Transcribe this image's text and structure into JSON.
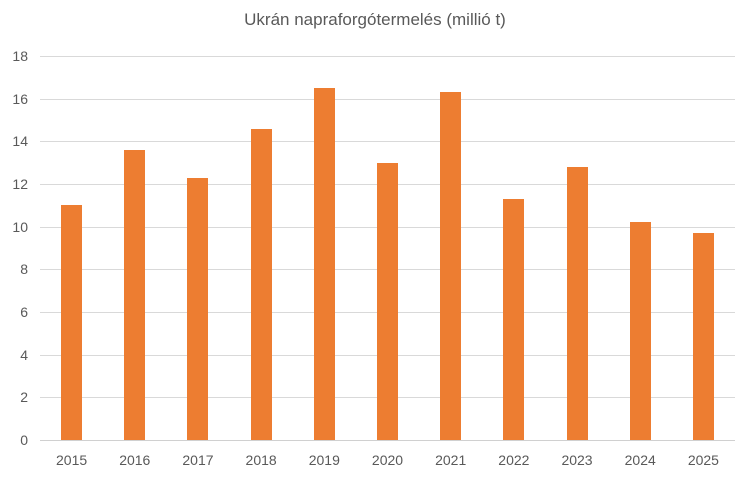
{
  "title": {
    "text": "Ukrán napraforgótermelés (millió t)"
  },
  "colors": {
    "bar": "#ED7D31",
    "gridline": "#D9D9D9",
    "axis_line": "#D0D0D0",
    "tick_label": "#595959",
    "title_text": "#595959",
    "background": "#FFFFFF"
  },
  "chart_data": {
    "type": "bar",
    "title": "Ukrán napraforgótermelés (millió t)",
    "categories": [
      "2015",
      "2016",
      "2017",
      "2018",
      "2019",
      "2020",
      "2021",
      "2022",
      "2023",
      "2024",
      "2025"
    ],
    "values": [
      11.0,
      13.6,
      12.3,
      14.6,
      16.5,
      13.0,
      16.3,
      11.3,
      12.8,
      10.2,
      9.7
    ],
    "xlabel": "",
    "ylabel": "",
    "ylim": [
      0,
      18
    ],
    "yticks": [
      0,
      2,
      4,
      6,
      8,
      10,
      12,
      14,
      16,
      18
    ],
    "grid": true,
    "legend": false
  }
}
